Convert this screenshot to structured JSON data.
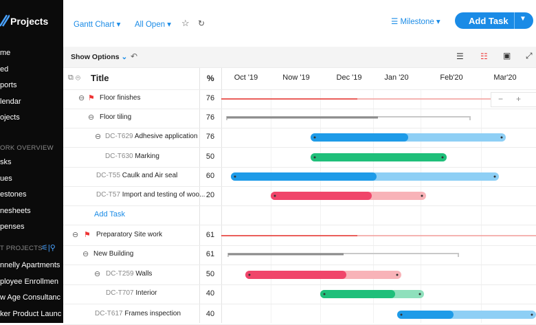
{
  "sidebar": {
    "logo": "Projects",
    "items": [
      "me",
      "ed",
      "ports",
      "lendar",
      "ojects"
    ],
    "section_work": "ORK OVERVIEW",
    "work_items": [
      "sks",
      "ues",
      "estones",
      "nesheets",
      "penses"
    ],
    "section_projects": "T PROJECTS",
    "projects": [
      "nnelly Apartments",
      "ployee Enrollmen",
      "w Age Consultanc",
      "ker Product Launc"
    ]
  },
  "topbar": {
    "view": "Gantt Chart",
    "filter": "All Open",
    "milestone": "Milestone",
    "add_task": "Add Task"
  },
  "toolbar": {
    "show_options": "Show Options"
  },
  "table": {
    "headers": {
      "title": "Title",
      "percent": "%"
    },
    "months": [
      "Oct '19",
      "Now '19",
      "Dec '19",
      "Jan '20",
      "Feb'20",
      "Mar'20"
    ],
    "rows": [
      {
        "name": "Floor finishes",
        "percent": 76
      },
      {
        "name": "Floor tiling",
        "percent": 76
      },
      {
        "id": "DC-T629",
        "name": "Adhesive application",
        "percent": 76
      },
      {
        "id": "DC-T630",
        "name": "Marking",
        "percent": 50
      },
      {
        "id": "DC-T55",
        "name": "Caulk and Air seal",
        "percent": 60
      },
      {
        "id": "DC-T57",
        "name": "Import and testing of woo...",
        "percent": 20
      },
      {
        "name": "Add Task"
      },
      {
        "name": "Preparatory Site work",
        "percent": 61
      },
      {
        "name": "New Building",
        "percent": 61
      },
      {
        "id": "DC-T259",
        "name": "Walls",
        "percent": 50
      },
      {
        "id": "DC-T707",
        "name": "Interior",
        "percent": 40
      },
      {
        "id": "DC-T617",
        "name": "Frames inspection",
        "percent": 40
      }
    ]
  }
}
